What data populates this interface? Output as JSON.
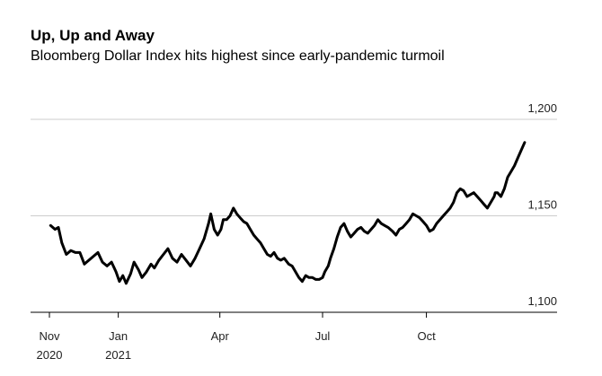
{
  "chart_data": {
    "type": "line",
    "title": "Up, Up and Away",
    "subtitle": "Bloomberg Dollar Index hits highest since early-pandemic turmoil",
    "xlabel": "",
    "ylabel": "",
    "ylim": [
      1100,
      1200
    ],
    "y_ticks": [
      {
        "value": 1200,
        "label": "1,200"
      },
      {
        "value": 1150,
        "label": "1,150"
      },
      {
        "value": 1100,
        "label": "1,100"
      }
    ],
    "x_ticks": [
      {
        "date": "2020-11-01",
        "line1": "Nov",
        "line2": "2020"
      },
      {
        "date": "2021-01-01",
        "line1": "Jan",
        "line2": "2021"
      },
      {
        "date": "2021-04-01",
        "line1": "Apr",
        "line2": ""
      },
      {
        "date": "2021-07-01",
        "line1": "Jul",
        "line2": ""
      },
      {
        "date": "2021-10-01",
        "line1": "Oct",
        "line2": ""
      }
    ],
    "xlim": [
      "2020-11-01",
      "2021-12-08"
    ],
    "grid": true,
    "series": [
      {
        "color": "#000000",
        "points": [
          [
            "2020-11-02",
            1145
          ],
          [
            "2020-11-06",
            1143
          ],
          [
            "2020-11-09",
            1144
          ],
          [
            "2020-11-12",
            1136
          ],
          [
            "2020-11-16",
            1130
          ],
          [
            "2020-11-20",
            1132
          ],
          [
            "2020-11-24",
            1131
          ],
          [
            "2020-11-28",
            1131
          ],
          [
            "2020-12-02",
            1125
          ],
          [
            "2020-12-06",
            1127
          ],
          [
            "2020-12-10",
            1129
          ],
          [
            "2020-12-14",
            1131
          ],
          [
            "2020-12-18",
            1126
          ],
          [
            "2020-12-22",
            1124
          ],
          [
            "2020-12-26",
            1126
          ],
          [
            "2020-12-30",
            1121
          ],
          [
            "2021-01-02",
            1116
          ],
          [
            "2021-01-05",
            1119
          ],
          [
            "2021-01-08",
            1115
          ],
          [
            "2021-01-12",
            1120
          ],
          [
            "2021-01-15",
            1126
          ],
          [
            "2021-01-19",
            1122
          ],
          [
            "2021-01-22",
            1118
          ],
          [
            "2021-01-26",
            1121
          ],
          [
            "2021-01-30",
            1125
          ],
          [
            "2021-02-02",
            1123
          ],
          [
            "2021-02-06",
            1127
          ],
          [
            "2021-02-10",
            1130
          ],
          [
            "2021-02-14",
            1133
          ],
          [
            "2021-02-18",
            1128
          ],
          [
            "2021-02-22",
            1126
          ],
          [
            "2021-02-26",
            1130
          ],
          [
            "2021-03-02",
            1127
          ],
          [
            "2021-03-06",
            1124
          ],
          [
            "2021-03-10",
            1128
          ],
          [
            "2021-03-14",
            1133
          ],
          [
            "2021-03-18",
            1138
          ],
          [
            "2021-03-22",
            1146
          ],
          [
            "2021-03-24",
            1151
          ],
          [
            "2021-03-27",
            1143
          ],
          [
            "2021-03-30",
            1140
          ],
          [
            "2021-04-02",
            1143
          ],
          [
            "2021-04-04",
            1148
          ],
          [
            "2021-04-07",
            1148
          ],
          [
            "2021-04-10",
            1150
          ],
          [
            "2021-04-13",
            1154
          ],
          [
            "2021-04-16",
            1151
          ],
          [
            "2021-04-19",
            1149
          ],
          [
            "2021-04-22",
            1147
          ],
          [
            "2021-04-25",
            1146
          ],
          [
            "2021-04-28",
            1143
          ],
          [
            "2021-05-01",
            1140
          ],
          [
            "2021-05-04",
            1138
          ],
          [
            "2021-05-07",
            1136
          ],
          [
            "2021-05-10",
            1133
          ],
          [
            "2021-05-13",
            1130
          ],
          [
            "2021-05-16",
            1129
          ],
          [
            "2021-05-19",
            1131
          ],
          [
            "2021-05-22",
            1128
          ],
          [
            "2021-05-25",
            1127
          ],
          [
            "2021-05-28",
            1128
          ],
          [
            "2021-06-01",
            1125
          ],
          [
            "2021-06-04",
            1124
          ],
          [
            "2021-06-07",
            1121
          ],
          [
            "2021-06-10",
            1118
          ],
          [
            "2021-06-13",
            1116
          ],
          [
            "2021-06-16",
            1119
          ],
          [
            "2021-06-19",
            1118
          ],
          [
            "2021-06-22",
            1118
          ],
          [
            "2021-06-25",
            1117
          ],
          [
            "2021-06-28",
            1117
          ],
          [
            "2021-07-01",
            1118
          ],
          [
            "2021-07-03",
            1121
          ],
          [
            "2021-07-06",
            1124
          ],
          [
            "2021-07-08",
            1128
          ],
          [
            "2021-07-11",
            1133
          ],
          [
            "2021-07-14",
            1139
          ],
          [
            "2021-07-17",
            1144
          ],
          [
            "2021-07-20",
            1146
          ],
          [
            "2021-07-23",
            1142
          ],
          [
            "2021-07-26",
            1139
          ],
          [
            "2021-07-29",
            1141
          ],
          [
            "2021-08-01",
            1143
          ],
          [
            "2021-08-04",
            1144
          ],
          [
            "2021-08-07",
            1142
          ],
          [
            "2021-08-10",
            1141
          ],
          [
            "2021-08-13",
            1143
          ],
          [
            "2021-08-16",
            1145
          ],
          [
            "2021-08-19",
            1148
          ],
          [
            "2021-08-22",
            1146
          ],
          [
            "2021-08-25",
            1145
          ],
          [
            "2021-08-28",
            1144
          ],
          [
            "2021-09-01",
            1142
          ],
          [
            "2021-09-04",
            1140
          ],
          [
            "2021-09-07",
            1143
          ],
          [
            "2021-09-10",
            1144
          ],
          [
            "2021-09-13",
            1146
          ],
          [
            "2021-09-16",
            1148
          ],
          [
            "2021-09-19",
            1151
          ],
          [
            "2021-09-22",
            1150
          ],
          [
            "2021-09-25",
            1149
          ],
          [
            "2021-09-28",
            1147
          ],
          [
            "2021-10-01",
            1145
          ],
          [
            "2021-10-04",
            1142
          ],
          [
            "2021-10-07",
            1143
          ],
          [
            "2021-10-10",
            1146
          ],
          [
            "2021-10-13",
            1148
          ],
          [
            "2021-10-16",
            1150
          ],
          [
            "2021-10-19",
            1152
          ],
          [
            "2021-10-22",
            1154
          ],
          [
            "2021-10-25",
            1157
          ],
          [
            "2021-10-28",
            1162
          ],
          [
            "2021-10-31",
            1164
          ],
          [
            "2021-11-03",
            1163
          ],
          [
            "2021-11-06",
            1160
          ],
          [
            "2021-11-09",
            1161
          ],
          [
            "2021-11-12",
            1162
          ],
          [
            "2021-11-15",
            1160
          ],
          [
            "2021-11-18",
            1158
          ],
          [
            "2021-11-21",
            1156
          ],
          [
            "2021-11-24",
            1154
          ],
          [
            "2021-11-27",
            1157
          ],
          [
            "2021-11-30",
            1160
          ],
          [
            "2021-12-01",
            1162
          ],
          [
            "2021-12-03",
            1162
          ],
          [
            "2021-12-06",
            1160
          ],
          [
            "2021-12-09",
            1164
          ],
          [
            "2021-12-12",
            1170
          ],
          [
            "2021-12-15",
            1173
          ],
          [
            "2021-12-18",
            1176
          ],
          [
            "2021-12-21",
            1180
          ],
          [
            "2021-12-24",
            1184
          ],
          [
            "2021-12-27",
            1188
          ]
        ]
      }
    ]
  }
}
